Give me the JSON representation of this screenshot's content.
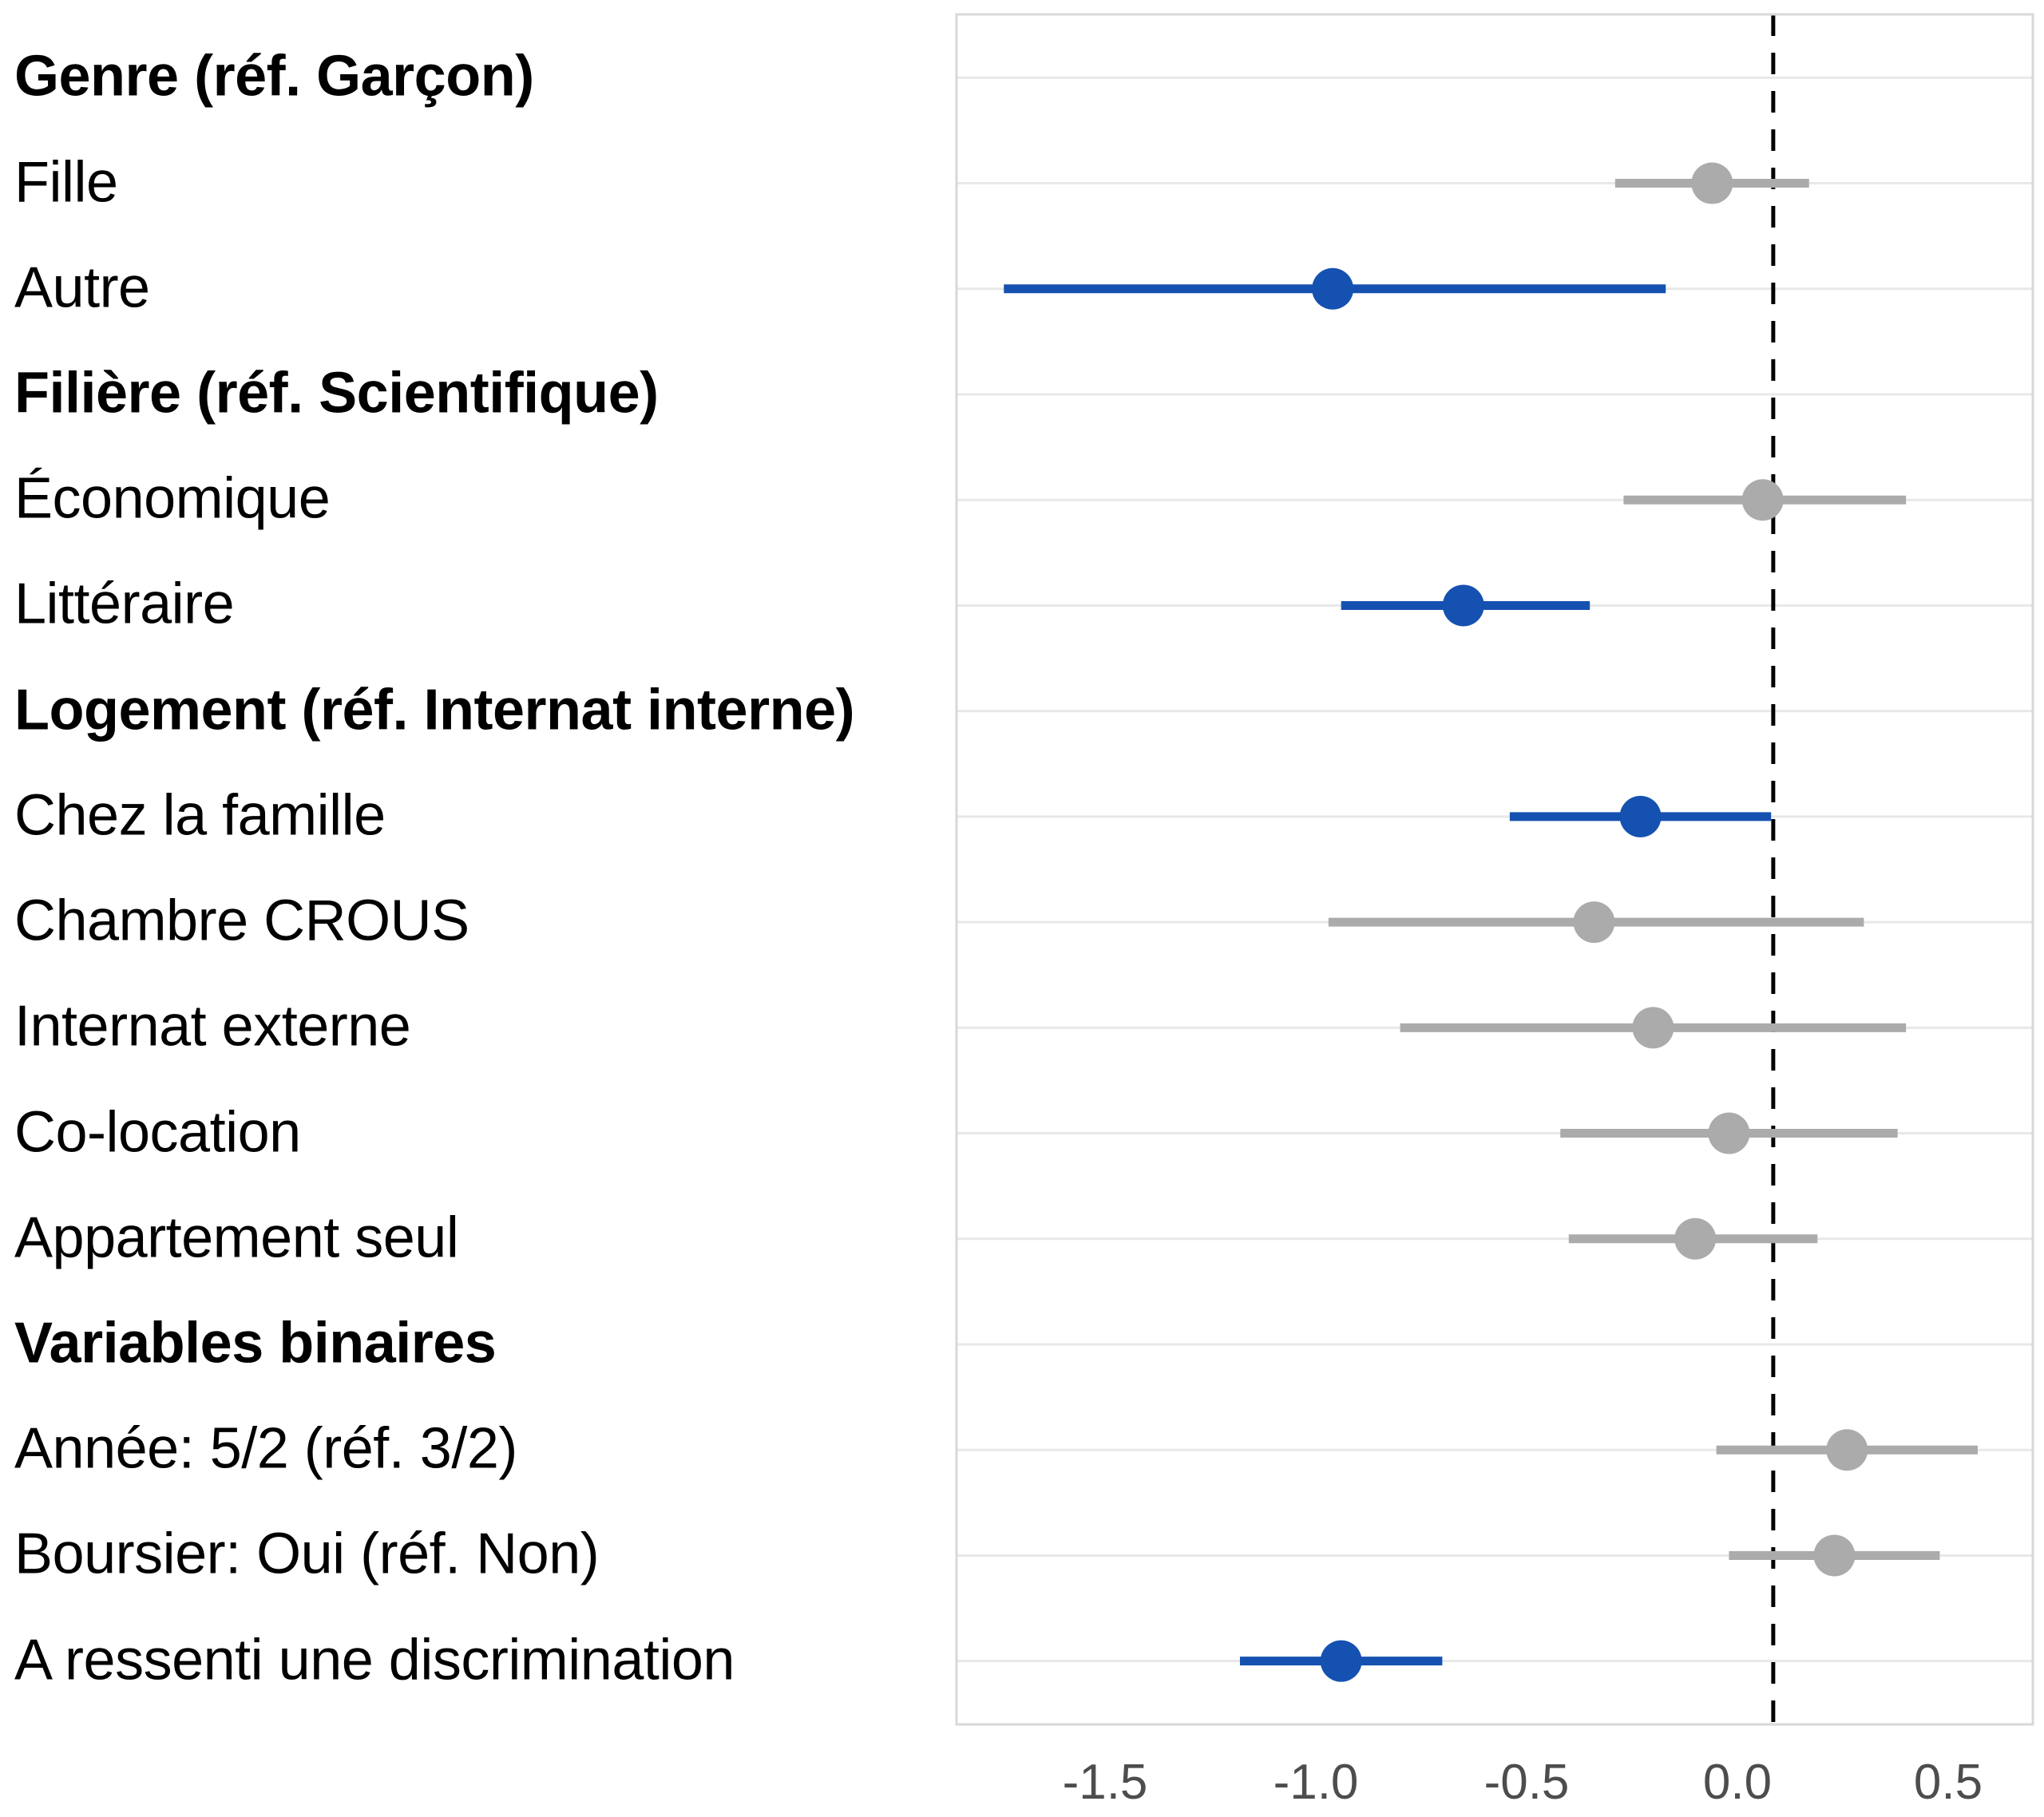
{
  "chart_data": {
    "type": "scatter",
    "subtype": "coefficient-forest-plot",
    "title": "",
    "xlabel": "",
    "ylabel": "",
    "xlim": [
      -1.852,
      0.7
    ],
    "x_ticks": [
      -1.5,
      -1.0,
      -0.5,
      0.0,
      0.5
    ],
    "x_tick_labels": [
      "-1.5",
      "-1.0",
      "-0.5",
      "0.0",
      "0.5"
    ],
    "reference_line": 0.085,
    "reference_line_style": "dashed-black",
    "grid": "horizontal-only",
    "legend": "none",
    "colors": {
      "significant_point": "#1551B0",
      "nonsignificant_point": "#ABABAB",
      "gridline": "#E8E8E8",
      "panel_border": "#D8D8D8",
      "axis_text": "#4D4D4D",
      "label_text": "#000000",
      "reference_line": "#000000"
    },
    "rows": [
      {
        "label": "Genre (réf. Garçon)",
        "header": true
      },
      {
        "label": "Fille",
        "header": false,
        "estimate": -0.06,
        "ci_low": -0.29,
        "ci_high": 0.17,
        "significant": false
      },
      {
        "label": "Autre",
        "header": false,
        "estimate": -0.96,
        "ci_low": -1.74,
        "ci_high": -0.17,
        "significant": true
      },
      {
        "label": "Filière (réf. Scientifique)",
        "header": true
      },
      {
        "label": "Économique",
        "header": false,
        "estimate": 0.06,
        "ci_low": -0.27,
        "ci_high": 0.4,
        "significant": false
      },
      {
        "label": "Littéraire",
        "header": false,
        "estimate": -0.65,
        "ci_low": -0.94,
        "ci_high": -0.35,
        "significant": true
      },
      {
        "label": "Logement (réf. Internat interne)",
        "header": true
      },
      {
        "label": "Chez la famille",
        "header": false,
        "estimate": -0.23,
        "ci_low": -0.54,
        "ci_high": 0.08,
        "significant": true
      },
      {
        "label": "Chambre CROUS",
        "header": false,
        "estimate": -0.34,
        "ci_low": -0.97,
        "ci_high": 0.3,
        "significant": false
      },
      {
        "label": "Internat externe",
        "header": false,
        "estimate": -0.2,
        "ci_low": -0.8,
        "ci_high": 0.4,
        "significant": false
      },
      {
        "label": "Co-location",
        "header": false,
        "estimate": -0.02,
        "ci_low": -0.42,
        "ci_high": 0.38,
        "significant": false
      },
      {
        "label": "Appartement seul",
        "header": false,
        "estimate": -0.1,
        "ci_low": -0.4,
        "ci_high": 0.19,
        "significant": false
      },
      {
        "label": "Variables binaires",
        "header": true
      },
      {
        "label": "Année: 5/2 (réf. 3/2)",
        "header": false,
        "estimate": 0.26,
        "ci_low": -0.05,
        "ci_high": 0.57,
        "significant": false
      },
      {
        "label": "Boursier: Oui (réf. Non)",
        "header": false,
        "estimate": 0.23,
        "ci_low": -0.02,
        "ci_high": 0.48,
        "significant": false
      },
      {
        "label": "A ressenti une discrimination",
        "header": false,
        "estimate": -0.94,
        "ci_low": -1.18,
        "ci_high": -0.7,
        "significant": true
      }
    ]
  }
}
